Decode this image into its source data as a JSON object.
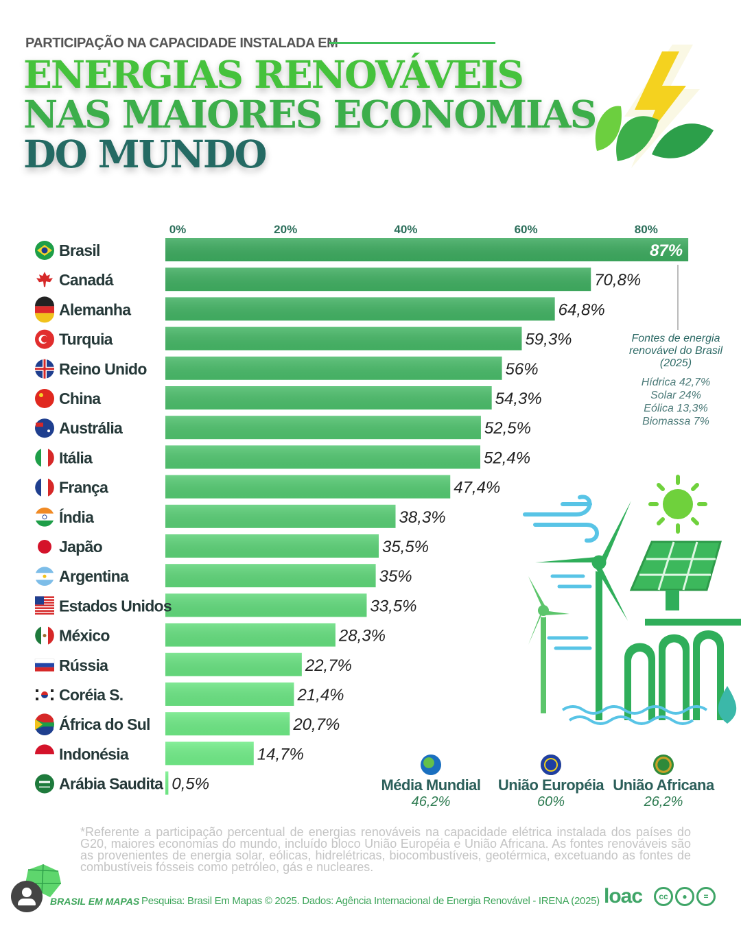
{
  "header": {
    "kicker": "PARTICIPAÇÃO NA CAPACIDADE INSTALADA EM",
    "title_line1": "ENERGIAS RENOVÁVEIS",
    "title_line2": "NAS MAIORES ECONOMIAS",
    "title_line3": "DO MUNDO"
  },
  "chart_data": {
    "type": "bar",
    "orientation": "horizontal",
    "xlim": [
      0,
      100
    ],
    "x_ticks": [
      "0%",
      "20%",
      "40%",
      "60%",
      "80%"
    ],
    "x_tick_values": [
      0,
      20,
      40,
      60,
      80
    ],
    "categories": [
      "Brasil",
      "Canadá",
      "Alemanha",
      "Turquia",
      "Reino Unido",
      "China",
      "Austrália",
      "Itália",
      "França",
      "Índia",
      "Japão",
      "Argentina",
      "Estados Unidos",
      "México",
      "Rússia",
      "Coréia S.",
      "África do Sul",
      "Indonésia",
      "Arábia Saudita"
    ],
    "values": [
      87,
      70.8,
      64.8,
      59.3,
      56,
      54.3,
      52.5,
      52.4,
      47.4,
      38.3,
      35.5,
      35,
      33.5,
      28.3,
      22.7,
      21.4,
      20.7,
      14.7,
      0.5
    ],
    "value_labels": [
      "87%",
      "70,8%",
      "64,8%",
      "59,3%",
      "56%",
      "54,3%",
      "52,5%",
      "52,4%",
      "47,4%",
      "38,3%",
      "35,5%",
      "35%",
      "33,5%",
      "28,3%",
      "22,7%",
      "21,4%",
      "20,7%",
      "14,7%",
      "0,5%"
    ],
    "bar_color_start": "#3daa5f",
    "bar_color_end": "#74f08a",
    "grid": false
  },
  "flags": [
    "brazil-flag-icon",
    "canada-flag-icon",
    "germany-flag-icon",
    "turkey-flag-icon",
    "uk-flag-icon",
    "china-flag-icon",
    "australia-flag-icon",
    "italy-flag-icon",
    "france-flag-icon",
    "india-flag-icon",
    "japan-flag-icon",
    "argentina-flag-icon",
    "usa-flag-icon",
    "mexico-flag-icon",
    "russia-flag-icon",
    "korea-flag-icon",
    "south-africa-flag-icon",
    "indonesia-flag-icon",
    "saudi-flag-icon"
  ],
  "brazil_note": {
    "title": "Fontes de energia renovável do Brasil (2025)",
    "items": [
      "Hídrica 42,7%",
      "Solar 24%",
      "Eólica  13,3%",
      "Biomassa 7%"
    ]
  },
  "references": [
    {
      "name": "Média Mundial",
      "value": "46,2%",
      "icon": "globe-icon"
    },
    {
      "name": "União Européia",
      "value": "60%",
      "icon": "eu-flag-icon"
    },
    {
      "name": "União Africana",
      "value": "26,2%",
      "icon": "african-union-icon"
    }
  ],
  "footnote": "*Referente a participação percentual de energias renováveis na capacidade elétrica instalada dos países do G20, maiores economias do mundo, incluído bloco União Européia e União Africana. As fontes renováveis são as provenientes de energia solar, eólicas, hidrelétricas, biocombustíveis, geotérmica, excetuando as fontes de combustíveis fósseis como petróleo, gás e nucleares.",
  "source": "Pesquisa: Brasil Em Mapas © 2025. Dados: Agência Internacional de Energia Renovável - IRENA (2025)",
  "brand": "BRASIL EM MAPAS",
  "partner": "loac",
  "colors": {
    "title_green": "#45c23c",
    "title_dark": "#246a63",
    "accent": "#3fa567"
  }
}
